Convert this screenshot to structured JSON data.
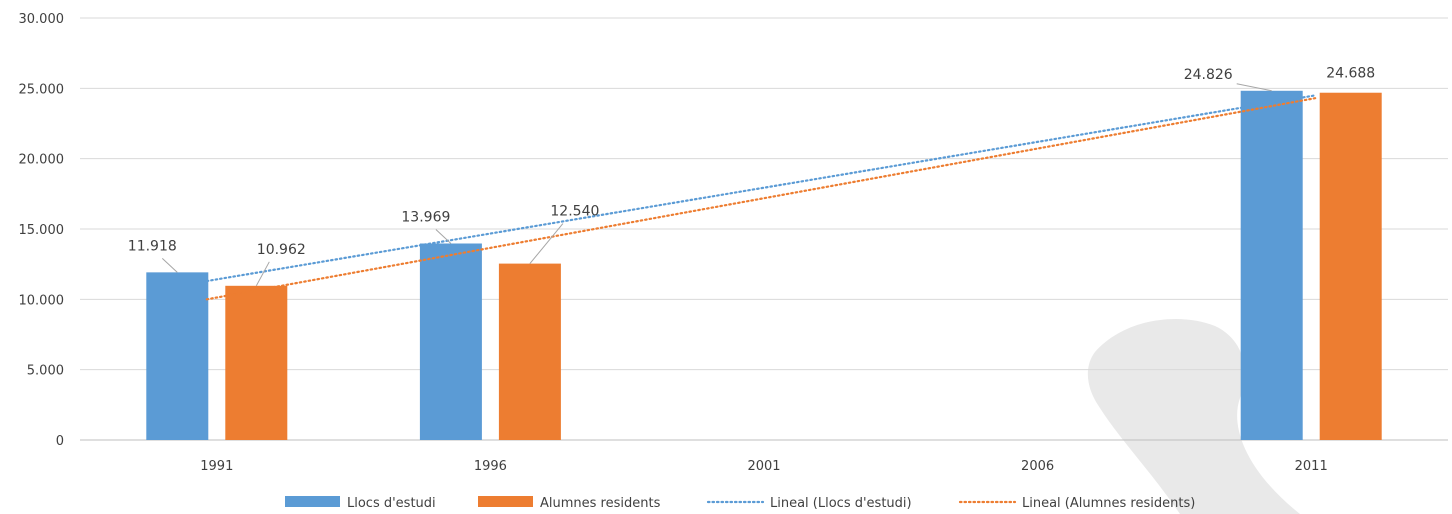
{
  "chart_data": {
    "type": "bar",
    "categories": [
      "1991",
      "1996",
      "2001",
      "2006",
      "2011"
    ],
    "series": [
      {
        "name": "Llocs d'estudi",
        "color": "#5B9BD5",
        "values": [
          11918,
          13969,
          null,
          null,
          24826
        ],
        "labels": [
          "11.918",
          "13.969",
          "",
          "",
          "24.826"
        ]
      },
      {
        "name": "Alumnes residents",
        "color": "#ED7D31",
        "values": [
          10962,
          12540,
          null,
          null,
          24688
        ],
        "labels": [
          "10.962",
          "12.540",
          "",
          "",
          "24.688"
        ]
      }
    ],
    "trendlines": [
      {
        "name": "Lineal (Llocs d'estudi)",
        "color": "#5B9BD5",
        "start": 11300,
        "end": 24500
      },
      {
        "name": "Lineal (Alumnes residents)",
        "color": "#ED7D31",
        "start": 10000,
        "end": 24300
      }
    ],
    "y_ticks": [
      "0",
      "5.000",
      "10.000",
      "15.000",
      "20.000",
      "25.000",
      "30.000"
    ],
    "ylim": [
      0,
      30000
    ],
    "grid": true,
    "legend_position": "bottom",
    "title": "",
    "xlabel": "",
    "ylabel": ""
  }
}
